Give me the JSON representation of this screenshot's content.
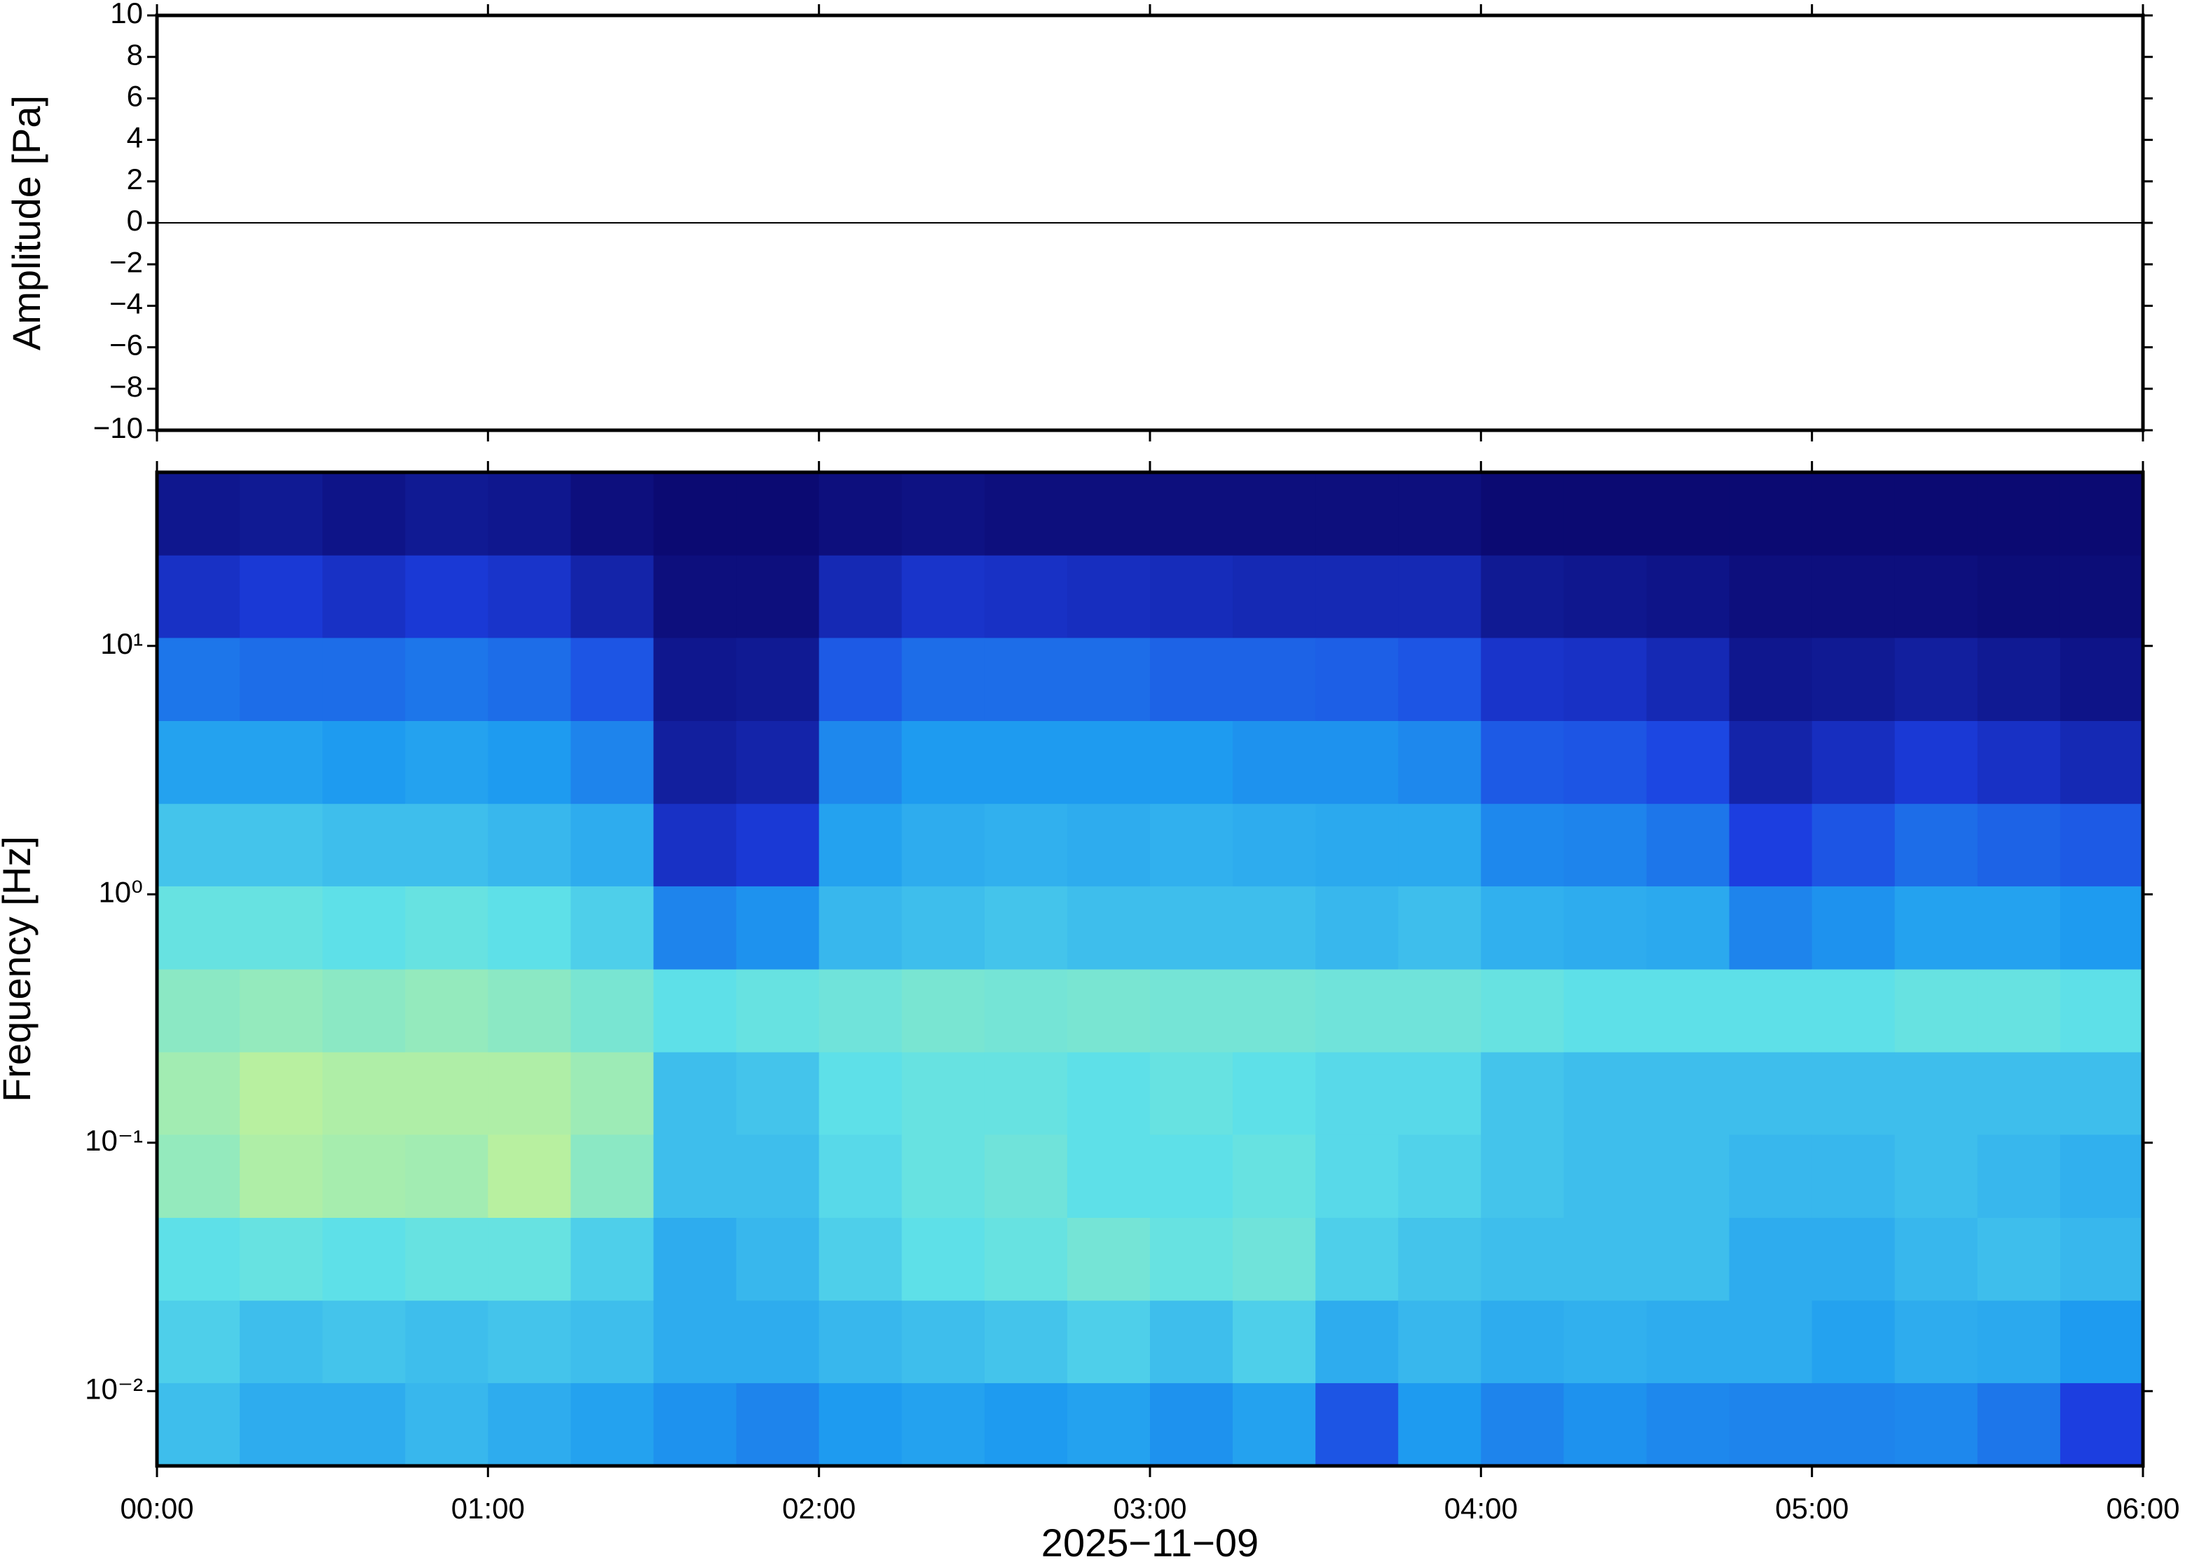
{
  "chart_data": [
    {
      "type": "line",
      "ylabel": "Amplitude [Pa]",
      "xlim": [
        0,
        360
      ],
      "xticks": [
        0,
        60,
        120,
        180,
        240,
        300,
        360
      ],
      "ylim": [
        -10,
        10
      ],
      "yticks": [
        {
          "value": -10,
          "label": "−10"
        },
        {
          "value": -8,
          "label": "−8"
        },
        {
          "value": -6,
          "label": "−6"
        },
        {
          "value": -4,
          "label": "−4"
        },
        {
          "value": -2,
          "label": "−2"
        },
        0,
        2,
        4,
        6,
        8,
        10
      ],
      "color": "#000000",
      "x": [
        0,
        60,
        120,
        180,
        240,
        300,
        360
      ],
      "values": [
        0,
        0,
        0,
        0,
        0,
        0,
        0
      ]
    },
    {
      "type": "heatmap",
      "ylabel": "Frequency [Hz]",
      "xlabel": "2025−11−09",
      "log_y": true,
      "xlim": [
        0,
        360
      ],
      "xticks": [
        {
          "value": 0,
          "label": "00:00"
        },
        {
          "value": 60,
          "label": "01:00"
        },
        {
          "value": 120,
          "label": "02:00"
        },
        {
          "value": 180,
          "label": "03:00"
        },
        {
          "value": 240,
          "label": "04:00"
        },
        {
          "value": 300,
          "label": "05:00"
        },
        {
          "value": 360,
          "label": "06:00"
        }
      ],
      "ylim": [
        0.005,
        50
      ],
      "yticks": [
        {
          "value": 0.01,
          "label": "10⁻²"
        },
        {
          "value": 0.1,
          "label": "10⁻¹"
        },
        {
          "value": 1,
          "label": "10⁰"
        },
        {
          "value": 10,
          "label": "10¹"
        }
      ],
      "colors": [
        "#0b0a72",
        "#1c3ee0",
        "#1e9bf0",
        "#5ee0e8",
        "#b8f0a0",
        "#f0f080"
      ],
      "xbins": [
        0,
        15,
        30,
        45,
        60,
        75,
        90,
        105,
        120,
        135,
        150,
        165,
        180,
        195,
        210,
        225,
        240,
        255,
        270,
        285,
        300,
        315,
        330,
        345,
        360
      ],
      "ybins": [
        0.005,
        0.0108,
        0.0232,
        0.05,
        0.108,
        0.232,
        0.5,
        1.08,
        2.32,
        5,
        10.8,
        23.2,
        50
      ],
      "values": [
        [
          0.5,
          0.55,
          0.6,
          0.72,
          0.75,
          0.7,
          0.62,
          0.52,
          0.42,
          0.32,
          0.15,
          0.05
        ],
        [
          0.45,
          0.5,
          0.62,
          0.78,
          0.8,
          0.72,
          0.62,
          0.52,
          0.42,
          0.3,
          0.18,
          0.06
        ],
        [
          0.45,
          0.52,
          0.6,
          0.76,
          0.78,
          0.7,
          0.6,
          0.5,
          0.4,
          0.3,
          0.15,
          0.04
        ],
        [
          0.48,
          0.5,
          0.62,
          0.75,
          0.78,
          0.72,
          0.62,
          0.5,
          0.42,
          0.32,
          0.18,
          0.06
        ],
        [
          0.45,
          0.52,
          0.62,
          0.8,
          0.78,
          0.7,
          0.6,
          0.48,
          0.4,
          0.3,
          0.16,
          0.05
        ],
        [
          0.42,
          0.5,
          0.55,
          0.7,
          0.74,
          0.66,
          0.55,
          0.45,
          0.35,
          0.25,
          0.1,
          0.02
        ],
        [
          0.38,
          0.45,
          0.45,
          0.5,
          0.5,
          0.6,
          0.35,
          0.15,
          0.08,
          0.05,
          0.02,
          0.0
        ],
        [
          0.35,
          0.45,
          0.48,
          0.5,
          0.52,
          0.62,
          0.38,
          0.18,
          0.1,
          0.06,
          0.02,
          0.0
        ],
        [
          0.4,
          0.48,
          0.55,
          0.58,
          0.6,
          0.64,
          0.48,
          0.42,
          0.36,
          0.26,
          0.12,
          0.02
        ],
        [
          0.42,
          0.5,
          0.6,
          0.62,
          0.62,
          0.66,
          0.5,
          0.45,
          0.4,
          0.3,
          0.16,
          0.03
        ],
        [
          0.4,
          0.52,
          0.62,
          0.64,
          0.62,
          0.65,
          0.52,
          0.46,
          0.4,
          0.3,
          0.15,
          0.02
        ],
        [
          0.42,
          0.55,
          0.65,
          0.6,
          0.6,
          0.66,
          0.5,
          0.45,
          0.4,
          0.3,
          0.14,
          0.02
        ],
        [
          0.38,
          0.5,
          0.62,
          0.6,
          0.62,
          0.65,
          0.5,
          0.46,
          0.4,
          0.28,
          0.13,
          0.02
        ],
        [
          0.42,
          0.55,
          0.64,
          0.62,
          0.6,
          0.65,
          0.5,
          0.45,
          0.38,
          0.28,
          0.12,
          0.02
        ],
        [
          0.25,
          0.45,
          0.55,
          0.58,
          0.58,
          0.64,
          0.48,
          0.44,
          0.38,
          0.27,
          0.12,
          0.02
        ],
        [
          0.4,
          0.48,
          0.52,
          0.56,
          0.58,
          0.64,
          0.5,
          0.44,
          0.36,
          0.25,
          0.12,
          0.02
        ],
        [
          0.35,
          0.45,
          0.5,
          0.52,
          0.52,
          0.62,
          0.46,
          0.36,
          0.26,
          0.16,
          0.06,
          0.0
        ],
        [
          0.38,
          0.46,
          0.5,
          0.5,
          0.5,
          0.6,
          0.45,
          0.35,
          0.25,
          0.15,
          0.05,
          0.0
        ],
        [
          0.36,
          0.45,
          0.5,
          0.5,
          0.5,
          0.6,
          0.44,
          0.32,
          0.22,
          0.12,
          0.04,
          0.0
        ],
        [
          0.35,
          0.45,
          0.45,
          0.48,
          0.5,
          0.6,
          0.35,
          0.2,
          0.1,
          0.05,
          0.02,
          0.0
        ],
        [
          0.35,
          0.42,
          0.45,
          0.48,
          0.5,
          0.6,
          0.38,
          0.25,
          0.14,
          0.06,
          0.02,
          0.0
        ],
        [
          0.36,
          0.45,
          0.48,
          0.5,
          0.5,
          0.62,
          0.42,
          0.3,
          0.18,
          0.08,
          0.02,
          0.0
        ],
        [
          0.32,
          0.44,
          0.5,
          0.48,
          0.5,
          0.62,
          0.42,
          0.28,
          0.15,
          0.06,
          0.01,
          0.0
        ],
        [
          0.2,
          0.4,
          0.48,
          0.46,
          0.5,
          0.6,
          0.4,
          0.26,
          0.12,
          0.04,
          0.01,
          0.0
        ]
      ]
    }
  ]
}
